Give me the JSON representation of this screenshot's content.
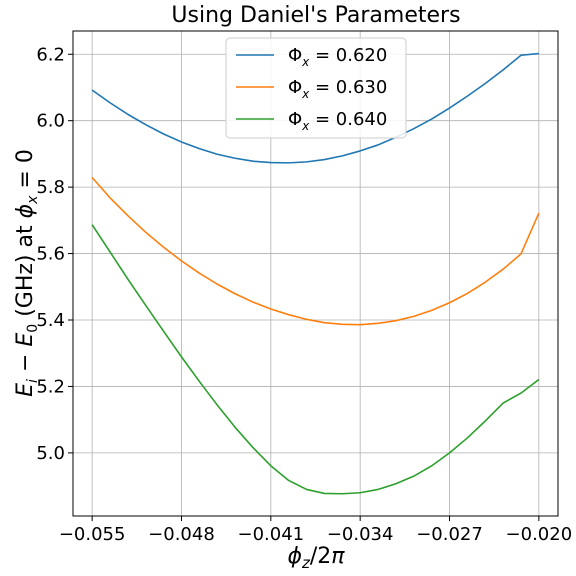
{
  "chart_data": {
    "type": "line",
    "title": "Using Daniel's Parameters",
    "xlabel": "ϕz/2π",
    "ylabel": "Ei − E0 (GHz) at ϕx = 0",
    "xlim": [
      -0.0565,
      -0.0185
    ],
    "ylim": [
      4.81,
      6.27
    ],
    "xticks": [
      -0.055,
      -0.048,
      -0.041,
      -0.034,
      -0.027,
      -0.02
    ],
    "xtick_labels": [
      "−0.055",
      "−0.048",
      "−0.041",
      "−0.034",
      "−0.027",
      "−0.020"
    ],
    "yticks": [
      5.0,
      5.2,
      5.4,
      5.6,
      5.8,
      6.0,
      6.2
    ],
    "ytick_labels": [
      "5.0",
      "5.2",
      "5.4",
      "5.6",
      "5.8",
      "6.0",
      "6.2"
    ],
    "grid": true,
    "legend_position": "top-center",
    "x": [
      -0.055,
      -0.0536,
      -0.0522,
      -0.0508,
      -0.0494,
      -0.048,
      -0.0466,
      -0.0452,
      -0.0438,
      -0.0424,
      -0.041,
      -0.0396,
      -0.0382,
      -0.0368,
      -0.0354,
      -0.034,
      -0.0326,
      -0.0312,
      -0.0298,
      -0.0284,
      -0.027,
      -0.0256,
      -0.0242,
      -0.0228,
      -0.0214,
      -0.02
    ],
    "series": [
      {
        "name": "Φx = 0.620",
        "legend_label": {
          "symbol": "Φ",
          "sub": "x",
          "value": " = 0.620"
        },
        "color": "#1f77b4",
        "values": [
          6.092,
          6.054,
          6.019,
          5.988,
          5.96,
          5.936,
          5.916,
          5.899,
          5.887,
          5.878,
          5.874,
          5.873,
          5.876,
          5.883,
          5.894,
          5.909,
          5.927,
          5.95,
          5.976,
          6.005,
          6.038,
          6.074,
          6.112,
          6.153,
          6.197,
          6.202
        ]
      },
      {
        "name": "Φx = 0.630",
        "legend_label": {
          "symbol": "Φ",
          "sub": "x",
          "value": " = 0.630"
        },
        "color": "#ff7f0e",
        "values": [
          5.829,
          5.768,
          5.714,
          5.664,
          5.619,
          5.578,
          5.541,
          5.508,
          5.479,
          5.454,
          5.433,
          5.416,
          5.402,
          5.392,
          5.387,
          5.386,
          5.39,
          5.398,
          5.411,
          5.429,
          5.452,
          5.48,
          5.514,
          5.553,
          5.599,
          5.722
        ]
      },
      {
        "name": "Φx = 0.640",
        "legend_label": {
          "symbol": "Φ",
          "sub": "x",
          "value": " = 0.640"
        },
        "color": "#2ca02c",
        "values": [
          5.687,
          5.605,
          5.523,
          5.444,
          5.366,
          5.289,
          5.215,
          5.144,
          5.077,
          5.016,
          4.961,
          4.917,
          4.89,
          4.878,
          4.877,
          4.88,
          4.89,
          4.907,
          4.93,
          4.961,
          5.0,
          5.045,
          5.096,
          5.15,
          5.18,
          5.221
        ]
      }
    ]
  }
}
